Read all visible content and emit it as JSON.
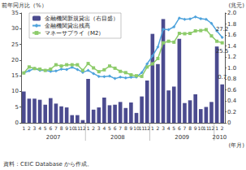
{
  "chart_data": {
    "type": "bar",
    "categories": [
      "1",
      "2",
      "3",
      "4",
      "5",
      "6",
      "7",
      "8",
      "9",
      "10",
      "11",
      "12",
      "1",
      "2",
      "3",
      "4",
      "5",
      "6",
      "7",
      "8",
      "9",
      "10",
      "11",
      "12",
      "1",
      "2",
      "3",
      "4",
      "5",
      "6",
      "7",
      "8",
      "9",
      "10",
      "11",
      "12",
      "1",
      "2"
    ],
    "years": [
      {
        "label": "2007",
        "months": 12
      },
      {
        "label": "2008",
        "months": 12
      },
      {
        "label": "2009",
        "months": 12
      },
      {
        "label": "2010",
        "months": 2
      }
    ],
    "x_label": "(年月)",
    "y_label": "前年同月比（%）",
    "y2_label": "(兆元)",
    "source": "資料：CEIC Database から作成。",
    "ylim": [
      0,
      35
    ],
    "yticks": [
      0,
      5,
      10,
      15,
      20,
      25,
      30,
      35
    ],
    "y2lim": [
      0,
      2
    ],
    "y2ticks": [
      0,
      0.2,
      0.4,
      0.6,
      0.8,
      {
        "value": 1,
        "label": "1.0"
      },
      1.2,
      1.4,
      1.6,
      1.8,
      {
        "value": 2,
        "label": "2.0"
      }
    ],
    "grid": false,
    "legend": "upper left",
    "series": [
      {
        "name": "金融機関新規貸出（右目盛）",
        "type": "bar",
        "axis": "y2",
        "color": "#4b4b8f",
        "values": [
          0.57,
          0.44,
          0.44,
          0.42,
          0.33,
          0.45,
          0.35,
          0.3,
          0.28,
          0.14,
          0.14,
          0.05,
          0.8,
          0.24,
          0.28,
          0.46,
          0.32,
          0.33,
          0.38,
          0.27,
          0.37,
          0.18,
          0.48,
          0.77,
          1.62,
          1.07,
          1.89,
          0.59,
          0.66,
          1.53,
          0.36,
          0.41,
          0.52,
          0.25,
          0.29,
          0.38,
          1.39,
          0.7
        ],
        "value_labels": [
          null,
          null,
          null,
          null,
          null,
          null,
          null,
          null,
          null,
          null,
          null,
          null,
          null,
          null,
          null,
          null,
          null,
          null,
          null,
          null,
          null,
          null,
          null,
          null,
          null,
          null,
          null,
          null,
          null,
          null,
          null,
          null,
          null,
          null,
          null,
          null,
          null,
          "0.7"
        ]
      },
      {
        "name": "金融機関貸出残高",
        "type": "line",
        "marker": "diamond",
        "color": "#4fa3dc",
        "values": [
          15.9,
          16.6,
          17.3,
          16.7,
          16.7,
          16.4,
          16.5,
          17.1,
          17.0,
          17.7,
          17.0,
          16.1,
          16.7,
          15.7,
          14.8,
          14.7,
          14.9,
          14.1,
          14.6,
          14.3,
          14.5,
          14.6,
          16.0,
          18.8,
          21.3,
          24.2,
          29.8,
          29.7,
          30.6,
          33.4,
          33.0,
          33.1,
          33.8,
          33.2,
          33.0,
          31.7,
          29.3,
          27.2
        ],
        "value_labels": [
          null,
          null,
          null,
          null,
          null,
          null,
          null,
          null,
          null,
          null,
          null,
          null,
          null,
          null,
          null,
          null,
          null,
          null,
          null,
          null,
          null,
          null,
          null,
          null,
          null,
          null,
          null,
          null,
          null,
          null,
          null,
          null,
          null,
          null,
          null,
          null,
          null,
          "27.2"
        ]
      },
      {
        "name": "マネーサプライ（M2）",
        "type": "line",
        "marker": "rect",
        "color": "#8dcb6a",
        "values": [
          15.9,
          17.8,
          17.3,
          17.1,
          16.7,
          17.1,
          18.5,
          18.1,
          18.5,
          18.5,
          18.5,
          16.7,
          18.9,
          17.5,
          16.3,
          16.9,
          18.1,
          17.4,
          16.4,
          16.0,
          15.3,
          15.0,
          14.8,
          17.8,
          18.8,
          20.5,
          25.5,
          26.0,
          25.7,
          28.5,
          28.4,
          28.5,
          29.3,
          29.4,
          29.7,
          27.7,
          26.0,
          25.5
        ],
        "value_labels": [
          null,
          null,
          null,
          null,
          null,
          null,
          null,
          null,
          null,
          null,
          null,
          null,
          null,
          null,
          null,
          null,
          null,
          null,
          null,
          null,
          null,
          null,
          null,
          null,
          null,
          null,
          null,
          null,
          null,
          null,
          null,
          null,
          null,
          null,
          null,
          null,
          null,
          "25.5"
        ]
      }
    ]
  }
}
